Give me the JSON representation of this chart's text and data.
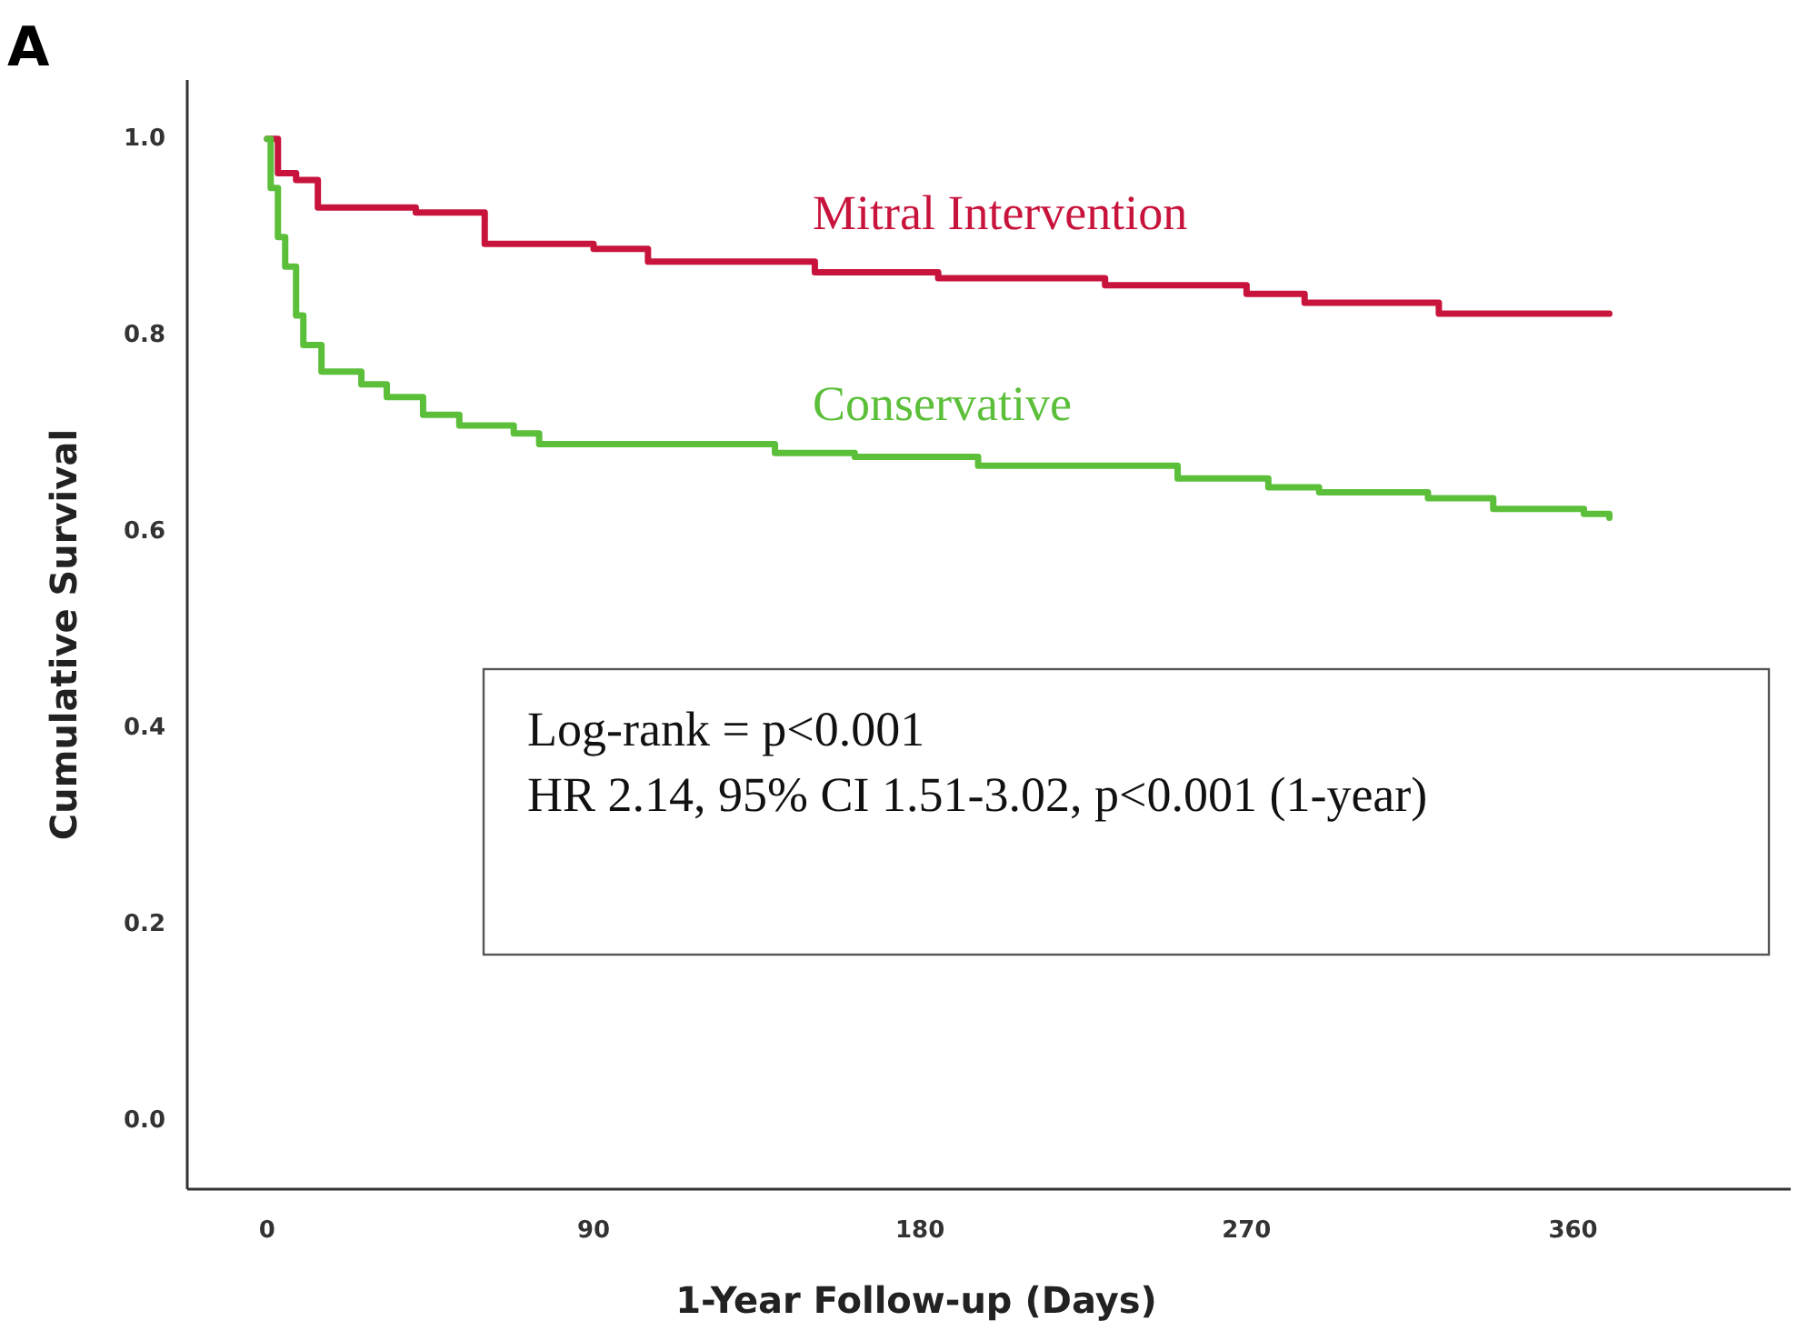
{
  "chart_data": {
    "type": "step",
    "title": "A",
    "xlabel": "1-Year Follow-up (Days)",
    "ylabel": "Cumulative Survival",
    "xlim": [
      -22,
      420
    ],
    "xticks": [
      0,
      90,
      180,
      270,
      360
    ],
    "ylim": [
      -0.07,
      1.06
    ],
    "yticks": [
      {
        "value": 0,
        "label": "0.0"
      },
      {
        "value": 0.2,
        "label": "0.2"
      },
      {
        "value": 0.4,
        "label": "0.4"
      },
      {
        "value": 0.6,
        "label": "0.6"
      },
      {
        "value": 0.8,
        "label": "0.8"
      },
      {
        "value": 1,
        "label": "1.0"
      }
    ],
    "grid": false,
    "legend": false,
    "marker": "none",
    "line_style": "solid",
    "series": [
      {
        "name": "Mitral Intervention",
        "color": "#c8143c",
        "x": [
          0,
          3,
          8,
          14,
          41,
          60,
          90,
          105,
          151,
          185,
          231,
          270,
          286,
          323,
          370
        ],
        "values": [
          1.0,
          0.965,
          0.958,
          0.93,
          0.925,
          0.893,
          0.888,
          0.875,
          0.864,
          0.858,
          0.851,
          0.842,
          0.833,
          0.822,
          0.822
        ]
      },
      {
        "name": "Conservative",
        "color": "#5cbf3a",
        "x": [
          0,
          1,
          3,
          5,
          8,
          10,
          15,
          26,
          33,
          43,
          53,
          68,
          75,
          140,
          162,
          196,
          251,
          276,
          290,
          320,
          338,
          363,
          370
        ],
        "values": [
          1.0,
          0.95,
          0.9,
          0.87,
          0.82,
          0.79,
          0.763,
          0.75,
          0.737,
          0.719,
          0.708,
          0.7,
          0.689,
          0.68,
          0.676,
          0.667,
          0.654,
          0.645,
          0.64,
          0.634,
          0.623,
          0.618,
          0.614
        ]
      }
    ],
    "annotations": [
      "Log-rank = p<0.001",
      "HR 2.14, 95% CI 1.51-3.02, p<0.001 (1-year)"
    ]
  }
}
